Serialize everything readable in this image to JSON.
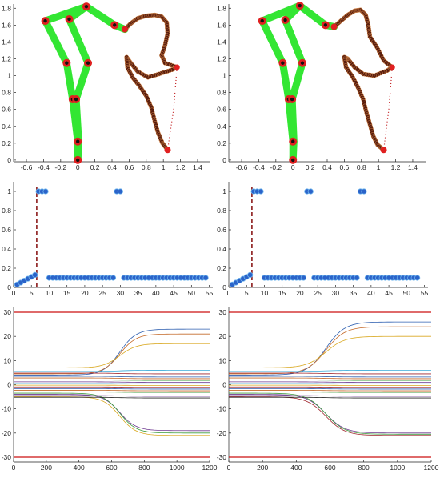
{
  "chart_data": [
    {
      "type": "scatter",
      "panel": "top-left",
      "xlim": [
        -0.75,
        1.55
      ],
      "ylim": [
        -0.02,
        1.85
      ],
      "xticks": [
        "-0.6",
        "-0.4",
        "-0.2",
        "0",
        "0.2",
        "0.4",
        "0.6",
        "0.8",
        "1",
        "1.2",
        "1.4"
      ],
      "xtick_values": [
        -0.6,
        -0.4,
        -0.2,
        0,
        0.2,
        0.4,
        0.6,
        0.8,
        1,
        1.2,
        1.4
      ],
      "yticks": [
        "0",
        "0.2",
        "0.4",
        "0.6",
        "0.8",
        "1",
        "1.2",
        "1.4",
        "1.6",
        "1.8"
      ],
      "ytick_values": [
        0,
        0.2,
        0.4,
        0.6,
        0.8,
        1,
        1.2,
        1.4,
        1.6,
        1.8
      ],
      "links": [
        [
          [
            0,
            0
          ],
          [
            0,
            0.22
          ],
          [
            -0.06,
            0.72
          ],
          [
            -0.13,
            1.15
          ],
          [
            -0.38,
            1.65
          ],
          [
            0.1,
            1.82
          ],
          [
            0.43,
            1.6
          ],
          [
            0.55,
            1.55
          ]
        ],
        [
          [
            0,
            0
          ],
          [
            0.01,
            0.22
          ],
          [
            -0.02,
            0.72
          ],
          [
            0.12,
            1.15
          ],
          [
            -0.1,
            1.67
          ],
          [
            0.1,
            1.82
          ]
        ]
      ],
      "joints": [
        [
          0,
          0
        ],
        [
          0,
          0.22
        ],
        [
          -0.06,
          0.72
        ],
        [
          -0.02,
          0.72
        ],
        [
          -0.13,
          1.15
        ],
        [
          0.12,
          1.15
        ],
        [
          -0.38,
          1.65
        ],
        [
          -0.1,
          1.67
        ],
        [
          0.1,
          1.82
        ],
        [
          0.43,
          1.6
        ]
      ],
      "path": [
        [
          0.55,
          1.55
        ],
        [
          0.62,
          1.62
        ],
        [
          0.7,
          1.68
        ],
        [
          0.8,
          1.71
        ],
        [
          0.9,
          1.72
        ],
        [
          0.98,
          1.7
        ],
        [
          1.04,
          1.63
        ],
        [
          1.05,
          1.5
        ],
        [
          1.02,
          1.36
        ],
        [
          0.98,
          1.24
        ],
        [
          1.02,
          1.15
        ],
        [
          1.16,
          1.1
        ],
        [
          1.1,
          1.07
        ],
        [
          0.95,
          1.02
        ],
        [
          0.82,
          0.98
        ],
        [
          0.7,
          1.05
        ],
        [
          0.62,
          1.15
        ],
        [
          0.57,
          1.22
        ],
        [
          0.58,
          1.1
        ],
        [
          0.64,
          0.98
        ],
        [
          0.72,
          0.88
        ],
        [
          0.8,
          0.76
        ],
        [
          0.86,
          0.62
        ],
        [
          0.9,
          0.46
        ],
        [
          0.94,
          0.32
        ],
        [
          0.99,
          0.2
        ],
        [
          1.05,
          0.12
        ]
      ],
      "target_line": [
        [
          1.16,
          1.1
        ],
        [
          1.12,
          0.6
        ],
        [
          1.05,
          0.12
        ]
      ]
    },
    {
      "type": "scatter",
      "panel": "top-right",
      "xlim": [
        -0.75,
        1.55
      ],
      "ylim": [
        -0.02,
        1.85
      ],
      "xticks": [
        "-0.6",
        "-0.4",
        "-0.2",
        "0",
        "0.2",
        "0.4",
        "0.6",
        "0.8",
        "1",
        "1.2",
        "1.4"
      ],
      "xtick_values": [
        -0.6,
        -0.4,
        -0.2,
        0,
        0.2,
        0.4,
        0.6,
        0.8,
        1,
        1.2,
        1.4
      ],
      "yticks": [
        "0",
        "0.2",
        "0.4",
        "0.6",
        "0.8",
        "1",
        "1.2",
        "1.4",
        "1.6",
        "1.8"
      ],
      "ytick_values": [
        0,
        0.2,
        0.4,
        0.6,
        0.8,
        1,
        1.2,
        1.4,
        1.6,
        1.8
      ],
      "links": [
        [
          [
            0,
            0
          ],
          [
            0,
            0.22
          ],
          [
            -0.05,
            0.72
          ],
          [
            -0.12,
            1.15
          ],
          [
            -0.36,
            1.65
          ],
          [
            0.08,
            1.83
          ],
          [
            0.38,
            1.6
          ],
          [
            0.48,
            1.58
          ]
        ],
        [
          [
            0,
            0
          ],
          [
            0.01,
            0.22
          ],
          [
            -0.01,
            0.72
          ],
          [
            0.11,
            1.15
          ],
          [
            -0.09,
            1.66
          ],
          [
            0.08,
            1.83
          ]
        ]
      ],
      "joints": [
        [
          0,
          0
        ],
        [
          0,
          0.22
        ],
        [
          -0.05,
          0.72
        ],
        [
          -0.01,
          0.72
        ],
        [
          -0.12,
          1.15
        ],
        [
          0.11,
          1.15
        ],
        [
          -0.36,
          1.65
        ],
        [
          -0.09,
          1.66
        ],
        [
          0.08,
          1.83
        ],
        [
          0.38,
          1.6
        ]
      ],
      "path": [
        [
          0.48,
          1.58
        ],
        [
          0.56,
          1.65
        ],
        [
          0.64,
          1.72
        ],
        [
          0.72,
          1.77
        ],
        [
          0.79,
          1.78
        ],
        [
          0.85,
          1.72
        ],
        [
          0.88,
          1.6
        ],
        [
          0.9,
          1.46
        ],
        [
          0.98,
          1.34
        ],
        [
          1.06,
          1.18
        ],
        [
          1.16,
          1.1
        ],
        [
          1.1,
          1.06
        ],
        [
          0.95,
          1.0
        ],
        [
          0.82,
          1.02
        ],
        [
          0.72,
          1.1
        ],
        [
          0.64,
          1.2
        ],
        [
          0.6,
          1.22
        ],
        [
          0.62,
          1.1
        ],
        [
          0.7,
          0.98
        ],
        [
          0.76,
          0.86
        ],
        [
          0.82,
          0.72
        ],
        [
          0.86,
          0.56
        ],
        [
          0.9,
          0.42
        ],
        [
          0.94,
          0.28
        ],
        [
          0.99,
          0.18
        ],
        [
          1.06,
          0.12
        ]
      ],
      "target_line": [
        [
          1.16,
          1.1
        ],
        [
          1.12,
          0.6
        ],
        [
          1.06,
          0.12
        ]
      ]
    },
    {
      "type": "scatter",
      "panel": "middle-left",
      "xlim": [
        0,
        56
      ],
      "ylim": [
        0,
        1.1
      ],
      "xticks": [
        "0",
        "5",
        "10",
        "15",
        "20",
        "25",
        "30",
        "35",
        "40",
        "45",
        "50",
        "55"
      ],
      "xtick_values": [
        0,
        5,
        10,
        15,
        20,
        25,
        30,
        35,
        40,
        45,
        50,
        55
      ],
      "yticks": [
        "0",
        "0.2",
        "0.4",
        "0.6",
        "0.8",
        "1"
      ],
      "ytick_values": [
        0,
        0.2,
        0.4,
        0.6,
        0.8,
        1
      ],
      "vline_x": 6.5,
      "x": [
        1,
        2,
        3,
        4,
        5,
        6,
        7,
        8,
        9,
        10,
        11,
        12,
        13,
        14,
        15,
        16,
        17,
        18,
        19,
        20,
        21,
        22,
        23,
        24,
        25,
        26,
        27,
        28,
        29,
        30,
        31,
        32,
        33,
        34,
        35,
        36,
        37,
        38,
        39,
        40,
        41,
        42,
        43,
        44,
        45,
        46,
        47,
        48,
        49,
        50,
        51,
        52,
        53,
        54
      ],
      "y": [
        0.03,
        0.05,
        0.07,
        0.09,
        0.11,
        0.13,
        1,
        1,
        1,
        0.1,
        0.1,
        0.1,
        0.1,
        0.1,
        0.1,
        0.1,
        0.1,
        0.1,
        0.1,
        0.1,
        0.1,
        0.1,
        0.1,
        0.1,
        0.1,
        0.1,
        0.1,
        0.1,
        1,
        1,
        0.1,
        0.1,
        0.1,
        0.1,
        0.1,
        0.1,
        0.1,
        0.1,
        0.1,
        0.1,
        0.1,
        0.1,
        0.1,
        0.1,
        0.1,
        0.1,
        0.1,
        0.1,
        0.1,
        0.1,
        0.1,
        0.1,
        0.1,
        0.1
      ]
    },
    {
      "type": "scatter",
      "panel": "middle-right",
      "xlim": [
        0,
        56
      ],
      "ylim": [
        0,
        1.1
      ],
      "xticks": [
        "0",
        "5",
        "10",
        "15",
        "20",
        "25",
        "30",
        "35",
        "40",
        "45",
        "50",
        "55"
      ],
      "xtick_values": [
        0,
        5,
        10,
        15,
        20,
        25,
        30,
        35,
        40,
        45,
        50,
        55
      ],
      "yticks": [
        "0",
        "0.2",
        "0.4",
        "0.6",
        "0.8",
        "1"
      ],
      "ytick_values": [
        0,
        0.2,
        0.4,
        0.6,
        0.8,
        1
      ],
      "vline_x": 6.5,
      "x": [
        1,
        2,
        3,
        4,
        5,
        6,
        7,
        8,
        9,
        10,
        11,
        12,
        13,
        14,
        15,
        16,
        17,
        18,
        19,
        20,
        21,
        22,
        23,
        24,
        25,
        26,
        27,
        28,
        29,
        30,
        31,
        32,
        33,
        34,
        35,
        36,
        37,
        38,
        39,
        40,
        41,
        42,
        43,
        44,
        45,
        46,
        47,
        48,
        49,
        50,
        51,
        52,
        53
      ],
      "y": [
        0.03,
        0.05,
        0.07,
        0.09,
        0.11,
        0.13,
        1,
        1,
        1,
        0.1,
        0.1,
        0.1,
        0.1,
        0.1,
        0.1,
        0.1,
        0.1,
        0.1,
        0.1,
        0.1,
        0.1,
        1,
        1,
        0.1,
        0.1,
        0.1,
        0.1,
        0.1,
        0.1,
        0.1,
        0.1,
        0.1,
        0.1,
        0.1,
        0.1,
        0.1,
        1,
        1,
        0.1,
        0.1,
        0.1,
        0.1,
        0.1,
        0.1,
        0.1,
        0.1,
        0.1,
        0.1,
        0.1,
        0.1,
        0.1,
        0.1,
        0.1
      ]
    },
    {
      "type": "line",
      "panel": "bottom-left",
      "xlim": [
        0,
        1200
      ],
      "ylim": [
        -32,
        32
      ],
      "xticks": [
        "0",
        "200",
        "400",
        "600",
        "800",
        "1000",
        "1200"
      ],
      "xtick_values": [
        0,
        200,
        400,
        600,
        800,
        1000,
        1200
      ],
      "yticks": [
        "-30",
        "-20",
        "-10",
        "0",
        "10",
        "20",
        "30"
      ],
      "ytick_values": [
        -30,
        -20,
        -10,
        0,
        10,
        20,
        30
      ],
      "hlines": [
        30,
        -30
      ],
      "transition": [
        450,
        850
      ],
      "series_ranges": [
        {
          "color": "#2e5fb0",
          "start": 4,
          "end": 23
        },
        {
          "color": "#c46a2a",
          "start": 4.5,
          "end": 21
        },
        {
          "color": "#d9a820",
          "start": 7,
          "end": 17
        },
        {
          "color": "#6f3a91",
          "start": -4,
          "end": -19
        },
        {
          "color": "#3d9c3d",
          "start": -3.5,
          "end": -20
        },
        {
          "color": "#d9a820",
          "start": -5,
          "end": -21
        },
        {
          "color": "#3aaad8",
          "start": 5.5,
          "end": 6
        },
        {
          "color": "#a0252c",
          "start": 4.8,
          "end": 4.5
        },
        {
          "color": "#2e5fb0",
          "start": 3.5,
          "end": 3.2
        },
        {
          "color": "#c46a2a",
          "start": 2.8,
          "end": 2.5
        },
        {
          "color": "#3d9c3d",
          "start": 2,
          "end": 1.8
        },
        {
          "color": "#6f3a91",
          "start": 1.2,
          "end": 1.0
        },
        {
          "color": "#3aaad8",
          "start": 0.5,
          "end": 0.4
        },
        {
          "color": "#d9a820",
          "start": -0.2,
          "end": -0.3
        },
        {
          "color": "#a0252c",
          "start": -0.9,
          "end": -1.1
        },
        {
          "color": "#2e5fb0",
          "start": -1.6,
          "end": -1.8
        },
        {
          "color": "#c46a2a",
          "start": -2.3,
          "end": -2.5
        },
        {
          "color": "#3d9c3d",
          "start": -3,
          "end": -3.2
        },
        {
          "color": "#6f3a91",
          "start": -4.5,
          "end": -4.8
        },
        {
          "color": "#222222",
          "start": -5.2,
          "end": -5.5
        }
      ]
    },
    {
      "type": "line",
      "panel": "bottom-right",
      "xlim": [
        0,
        1200
      ],
      "ylim": [
        -32,
        32
      ],
      "xticks": [
        "0",
        "200",
        "400",
        "600",
        "800",
        "1000",
        "1200"
      ],
      "xtick_values": [
        0,
        200,
        400,
        600,
        800,
        1000,
        1200
      ],
      "yticks": [
        "-30",
        "-20",
        "-10",
        "0",
        "10",
        "20",
        "30"
      ],
      "ytick_values": [
        -30,
        -20,
        -10,
        0,
        10,
        20,
        30
      ],
      "hlines": [
        30,
        -30
      ],
      "transition": [
        350,
        800
      ],
      "series_ranges": [
        {
          "color": "#2e5fb0",
          "start": 4,
          "end": 26
        },
        {
          "color": "#c46a2a",
          "start": 4.5,
          "end": 24
        },
        {
          "color": "#d9a820",
          "start": 7,
          "end": 20
        },
        {
          "color": "#6f3a91",
          "start": -4,
          "end": -20
        },
        {
          "color": "#3d9c3d",
          "start": -3.5,
          "end": -20.5
        },
        {
          "color": "#a0252c",
          "start": -5,
          "end": -21
        },
        {
          "color": "#3aaad8",
          "start": 5.5,
          "end": 6
        },
        {
          "color": "#a0252c",
          "start": 4.8,
          "end": 4.5
        },
        {
          "color": "#2e5fb0",
          "start": 3.5,
          "end": 3.2
        },
        {
          "color": "#c46a2a",
          "start": 2.8,
          "end": 2.5
        },
        {
          "color": "#3d9c3d",
          "start": 2,
          "end": 1.8
        },
        {
          "color": "#6f3a91",
          "start": 1.2,
          "end": 1.0
        },
        {
          "color": "#3aaad8",
          "start": 0.5,
          "end": 0.4
        },
        {
          "color": "#d9a820",
          "start": -0.2,
          "end": -0.3
        },
        {
          "color": "#a0252c",
          "start": -0.9,
          "end": -1.1
        },
        {
          "color": "#2e5fb0",
          "start": -1.6,
          "end": -1.8
        },
        {
          "color": "#c46a2a",
          "start": -2.3,
          "end": -2.5
        },
        {
          "color": "#3d9c3d",
          "start": -3,
          "end": -3.2
        },
        {
          "color": "#6f3a91",
          "start": -4.5,
          "end": -4.8
        },
        {
          "color": "#222222",
          "start": -5.2,
          "end": -5.5
        }
      ]
    }
  ],
  "colors": {
    "link": "#33e633",
    "joint_outer": "#e02020",
    "joint_inner": "#111111",
    "path_dot": "#5a1e0e",
    "target": "#c0181a",
    "marker": "#2b63c9",
    "marker_edge": "#6fb6ee",
    "vline": "#8b1a1a",
    "hline": "#cc1111"
  }
}
